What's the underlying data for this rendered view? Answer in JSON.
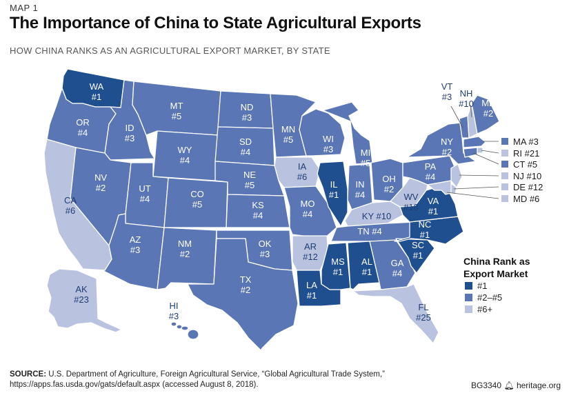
{
  "eyebrow": "MAP 1",
  "title": "The Importance of China to State Agricultural Exports",
  "subtitle": "HOW CHINA RANKS AS AN AGRICULTURAL EXPORT MARKET, BY STATE",
  "colors": {
    "tier1": "#1f4f8f",
    "tier2": "#5a76b4",
    "tier3": "#b9c3df",
    "border": "#ffffff"
  },
  "states": {
    "WA": {
      "abbr": "WA",
      "rank": "#1",
      "tier": 1
    },
    "OR": {
      "abbr": "OR",
      "rank": "#4",
      "tier": 2
    },
    "CA": {
      "abbr": "CA",
      "rank": "#6",
      "tier": 3
    },
    "ID": {
      "abbr": "ID",
      "rank": "#3",
      "tier": 2
    },
    "NV": {
      "abbr": "NV",
      "rank": "#2",
      "tier": 2
    },
    "MT": {
      "abbr": "MT",
      "rank": "#5",
      "tier": 2
    },
    "WY": {
      "abbr": "WY",
      "rank": "#4",
      "tier": 2
    },
    "UT": {
      "abbr": "UT",
      "rank": "#4",
      "tier": 2
    },
    "AZ": {
      "abbr": "AZ",
      "rank": "#3",
      "tier": 2
    },
    "CO": {
      "abbr": "CO",
      "rank": "#5",
      "tier": 2
    },
    "NM": {
      "abbr": "NM",
      "rank": "#2",
      "tier": 2
    },
    "ND": {
      "abbr": "ND",
      "rank": "#3",
      "tier": 2
    },
    "SD": {
      "abbr": "SD",
      "rank": "#4",
      "tier": 2
    },
    "NE": {
      "abbr": "NE",
      "rank": "#5",
      "tier": 2
    },
    "KS": {
      "abbr": "KS",
      "rank": "#4",
      "tier": 2
    },
    "OK": {
      "abbr": "OK",
      "rank": "#3",
      "tier": 2
    },
    "TX": {
      "abbr": "TX",
      "rank": "#2",
      "tier": 2
    },
    "MN": {
      "abbr": "MN",
      "rank": "#5",
      "tier": 2
    },
    "IA": {
      "abbr": "IA",
      "rank": "#6",
      "tier": 3
    },
    "MO": {
      "abbr": "MO",
      "rank": "#4",
      "tier": 2
    },
    "AR": {
      "abbr": "AR",
      "rank": "#12",
      "tier": 3
    },
    "LA": {
      "abbr": "LA",
      "rank": "#1",
      "tier": 1
    },
    "WI": {
      "abbr": "WI",
      "rank": "#3",
      "tier": 2
    },
    "IL": {
      "abbr": "IL",
      "rank": "#1",
      "tier": 1
    },
    "MI": {
      "abbr": "MI",
      "rank": "#5",
      "tier": 2
    },
    "IN": {
      "abbr": "IN",
      "rank": "#4",
      "tier": 2
    },
    "OH": {
      "abbr": "OH",
      "rank": "#2",
      "tier": 2
    },
    "KY": {
      "abbr": "KY",
      "rank": "#10",
      "tier": 3
    },
    "TN": {
      "abbr": "TN",
      "rank": "#4",
      "tier": 2
    },
    "MS": {
      "abbr": "MS",
      "rank": "#1",
      "tier": 1
    },
    "AL": {
      "abbr": "AL",
      "rank": "#1",
      "tier": 1
    },
    "GA": {
      "abbr": "GA",
      "rank": "#4",
      "tier": 2
    },
    "FL": {
      "abbr": "FL",
      "rank": "#25",
      "tier": 3
    },
    "SC": {
      "abbr": "SC",
      "rank": "#1",
      "tier": 1
    },
    "NC": {
      "abbr": "NC",
      "rank": "#1",
      "tier": 1
    },
    "VA": {
      "abbr": "VA",
      "rank": "#1",
      "tier": 1
    },
    "WV": {
      "abbr": "WV",
      "rank": "#18",
      "tier": 3
    },
    "PA": {
      "abbr": "PA",
      "rank": "#4",
      "tier": 2
    },
    "NY": {
      "abbr": "NY",
      "rank": "#2",
      "tier": 2
    },
    "VT": {
      "abbr": "VT",
      "rank": "#3",
      "tier": 2
    },
    "NH": {
      "abbr": "NH",
      "rank": "#10",
      "tier": 3
    },
    "ME": {
      "abbr": "ME",
      "rank": "#2",
      "tier": 2
    },
    "MA": {
      "abbr": "MA",
      "rank": "#3",
      "tier": 2
    },
    "RI": {
      "abbr": "RI",
      "rank": "#21",
      "tier": 3
    },
    "CT": {
      "abbr": "CT",
      "rank": "#5",
      "tier": 2
    },
    "NJ": {
      "abbr": "NJ",
      "rank": "#10",
      "tier": 3
    },
    "DE": {
      "abbr": "DE",
      "rank": "#12",
      "tier": 3
    },
    "MD": {
      "abbr": "MD",
      "rank": "#6",
      "tier": 3
    },
    "AK": {
      "abbr": "AK",
      "rank": "#23",
      "tier": 3
    },
    "HI": {
      "abbr": "HI",
      "rank": "#3",
      "tier": 2
    }
  },
  "callouts": {
    "MA": "MA #3",
    "RI": "RI #21",
    "CT": "CT #5",
    "NJ": "NJ #10",
    "DE": "DE #12",
    "MD": "MD #6"
  },
  "legend": {
    "title_line1": "China Rank as",
    "title_line2": "Export Market",
    "items": [
      {
        "label": "#1",
        "tier": 1
      },
      {
        "label": "#2–#5",
        "tier": 2
      },
      {
        "label": "#6+",
        "tier": 3
      }
    ]
  },
  "source": {
    "label": "SOURCE:",
    "text": " U.S. Department of Agriculture, Foreign Agricultural Service, “Global Agricultural Trade System,” https://apps.fas.usda.gov/gats/default.aspx (accessed August 8, 2018)."
  },
  "credit": {
    "code": "BG3340",
    "site": "heritage.org"
  }
}
